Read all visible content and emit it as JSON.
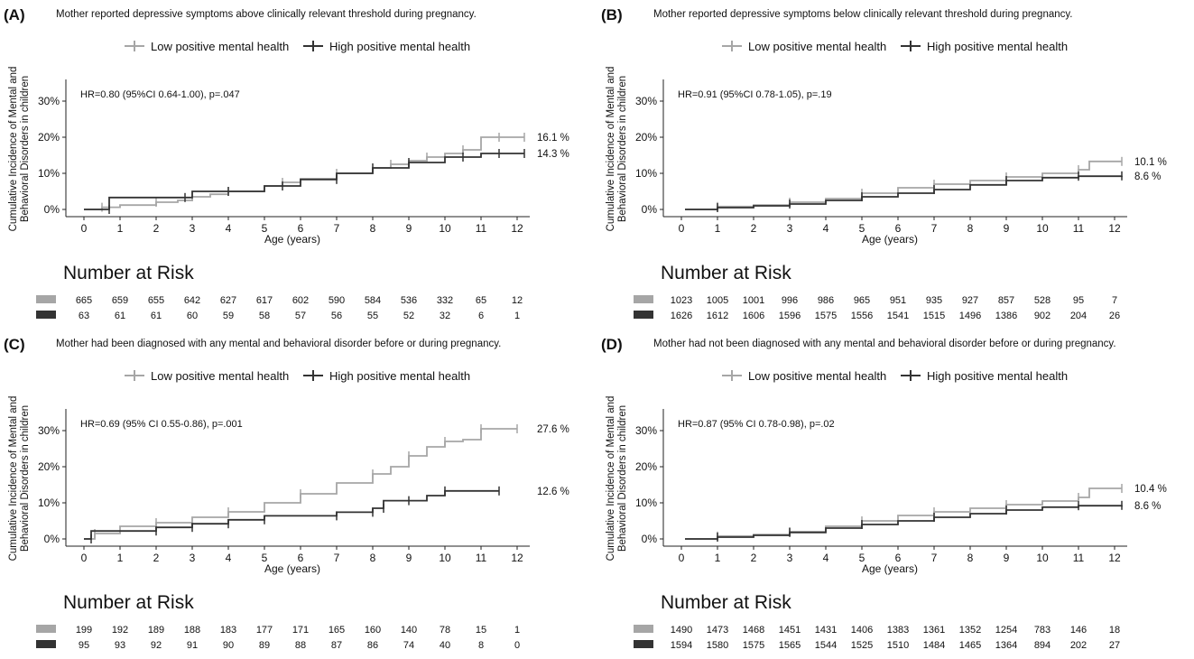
{
  "colors": {
    "low": "#a6a6a6",
    "high": "#333333",
    "axis": "#222222",
    "text": "#111111"
  },
  "common": {
    "ylabel_line1": "Cumulative Incidence of Mental and",
    "ylabel_line2": "Behavioral Disorders in children",
    "xlabel": "Age (years)",
    "risk_title": "Number at Risk",
    "legend_low": "Low positive mental health",
    "legend_high": "High positive mental health"
  },
  "chart_data": [
    {
      "type": "line",
      "panel_label": "(A)",
      "title": "Mother reported depressive symptoms above clinically relevant threshold during pregnancy.",
      "annotation": "HR=0.80 (95%CI 0.64-1.00), p=.047",
      "xlabel": "Age (years)",
      "ylabel": "Cumulative Incidence of Mental and Behavioral Disorders in children",
      "x_ticks": [
        0,
        1,
        2,
        3,
        4,
        5,
        6,
        7,
        8,
        9,
        10,
        11,
        12
      ],
      "y_ticks": [
        "0%",
        "10%",
        "20%",
        "30%"
      ],
      "xlim": [
        0,
        12
      ],
      "ylim": [
        0,
        35
      ],
      "series": [
        {
          "name": "Low positive mental health",
          "end_label": "16.1 %",
          "x": [
            0,
            0.5,
            1,
            2,
            2.6,
            3,
            3.5,
            4,
            5,
            5.5,
            6,
            7,
            8,
            8.5,
            9,
            9.5,
            10,
            10.5,
            11,
            11.5,
            12.2
          ],
          "y": [
            0,
            0.6,
            1.2,
            2,
            2.5,
            3.5,
            4.2,
            5,
            6.5,
            7.5,
            8.5,
            10,
            11.5,
            12.5,
            13.5,
            14.5,
            15.5,
            16.5,
            20,
            20,
            20
          ]
        },
        {
          "name": "High positive mental health",
          "end_label": "14.3 %",
          "x": [
            0,
            0.7,
            0.7,
            2.8,
            3,
            4,
            5,
            5.5,
            6,
            7,
            7,
            8,
            8.5,
            9,
            10,
            10.5,
            11,
            11.5,
            12.2
          ],
          "y": [
            0,
            0,
            3.3,
            3.3,
            5,
            5,
            6.5,
            6.5,
            8.3,
            8.3,
            10,
            11.5,
            11.5,
            13,
            14.5,
            14.5,
            15.5,
            15.5,
            15.5
          ]
        }
      ],
      "risk_low": [
        "665",
        "659",
        "655",
        "642",
        "627",
        "617",
        "602",
        "590",
        "584",
        "536",
        "332",
        "65",
        "12"
      ],
      "risk_high": [
        "63",
        "61",
        "61",
        "60",
        "59",
        "58",
        "57",
        "56",
        "55",
        "52",
        "32",
        "6",
        "1"
      ]
    },
    {
      "type": "line",
      "panel_label": "(B)",
      "title": "Mother reported depressive symptoms below clinically relevant threshold during pregnancy.",
      "annotation": "HR=0.91 (95%CI 0.78-1.05), p=.19",
      "xlabel": "Age (years)",
      "ylabel": "Cumulative Incidence of Mental and Behavioral Disorders in children",
      "x_ticks": [
        0,
        1,
        2,
        3,
        4,
        5,
        6,
        7,
        8,
        9,
        10,
        11,
        12
      ],
      "y_ticks": [
        "0%",
        "10%",
        "20%",
        "30%"
      ],
      "xlim": [
        0,
        12
      ],
      "ylim": [
        0,
        35
      ],
      "series": [
        {
          "name": "Low positive mental health",
          "end_label": "10.1 %",
          "x": [
            0.1,
            1,
            2,
            3,
            4,
            5,
            6,
            7,
            8,
            9,
            10,
            11,
            11.3,
            12.2
          ],
          "y": [
            0,
            0.8,
            1.2,
            2,
            3,
            4.5,
            6,
            7,
            8,
            9,
            10,
            11,
            13.3,
            13.3
          ]
        },
        {
          "name": "High positive mental health",
          "end_label": "8.6 %",
          "x": [
            0.1,
            1,
            2,
            3,
            4,
            5,
            6,
            7,
            8,
            9,
            10,
            11,
            12.2
          ],
          "y": [
            0,
            0.5,
            1,
            1.5,
            2.5,
            3.5,
            4.5,
            5.5,
            6.8,
            8,
            8.8,
            9.2,
            9.3
          ]
        }
      ],
      "risk_low": [
        "1023",
        "1005",
        "1001",
        "996",
        "986",
        "965",
        "951",
        "935",
        "927",
        "857",
        "528",
        "95",
        "7"
      ],
      "risk_high": [
        "1626",
        "1612",
        "1606",
        "1596",
        "1575",
        "1556",
        "1541",
        "1515",
        "1496",
        "1386",
        "902",
        "204",
        "26"
      ]
    },
    {
      "type": "line",
      "panel_label": "(C)",
      "title": "Mother had been diagnosed with any mental and behavioral disorder before or during pregnancy.",
      "annotation": "HR=0.69 (95% CI 0.55-0.86), p=.001",
      "xlabel": "Age (years)",
      "ylabel": "Cumulative Incidence of Mental and Behavioral Disorders in children",
      "x_ticks": [
        0,
        1,
        2,
        3,
        4,
        5,
        6,
        7,
        8,
        9,
        10,
        11,
        12
      ],
      "y_ticks": [
        "0%",
        "10%",
        "20%",
        "30%"
      ],
      "xlim": [
        0,
        12
      ],
      "ylim": [
        0,
        35
      ],
      "series": [
        {
          "name": "Low positive mental health",
          "end_label": "27.6 %",
          "x": [
            0,
            0.3,
            1,
            2,
            3,
            4,
            5,
            6,
            7,
            8,
            8.5,
            9,
            9.5,
            10,
            10.5,
            11,
            12
          ],
          "y": [
            0,
            1.5,
            3.5,
            4.5,
            6,
            7.5,
            10,
            12.5,
            15.5,
            18,
            20,
            23,
            25.5,
            27,
            27.5,
            30.5,
            30.5
          ]
        },
        {
          "name": "High positive mental health",
          "end_label": "12.6 %",
          "x": [
            0,
            0.2,
            0.2,
            2,
            2,
            3,
            3,
            4,
            4,
            5,
            5,
            7,
            7,
            8,
            8,
            8.3,
            8.3,
            9,
            9.5,
            10,
            11,
            11.5
          ],
          "y": [
            0,
            0,
            2.2,
            2.2,
            3.2,
            3.2,
            4.2,
            4.2,
            5.3,
            5.3,
            6.4,
            6.4,
            7.4,
            7.4,
            8.5,
            8.5,
            10.6,
            10.6,
            12,
            13.3,
            13.3,
            13.3
          ]
        }
      ],
      "risk_low": [
        "199",
        "192",
        "189",
        "188",
        "183",
        "177",
        "171",
        "165",
        "160",
        "140",
        "78",
        "15",
        "1"
      ],
      "risk_high": [
        "95",
        "93",
        "92",
        "91",
        "90",
        "89",
        "88",
        "87",
        "86",
        "74",
        "40",
        "8",
        "0"
      ]
    },
    {
      "type": "line",
      "panel_label": "(D)",
      "title": "Mother had not been diagnosed with any mental and behavioral disorder before or during pregnancy.",
      "annotation": "HR=0.87 (95% CI 0.78-0.98), p=.02",
      "xlabel": "Age (years)",
      "ylabel": "Cumulative Incidence of Mental and Behavioral Disorders in children",
      "x_ticks": [
        0,
        1,
        2,
        3,
        4,
        5,
        6,
        7,
        8,
        9,
        10,
        11,
        12
      ],
      "y_ticks": [
        "0%",
        "10%",
        "20%",
        "30%"
      ],
      "xlim": [
        0,
        12
      ],
      "ylim": [
        0,
        35
      ],
      "series": [
        {
          "name": "Low positive mental health",
          "end_label": "10.4 %",
          "x": [
            0.1,
            1,
            2,
            3,
            4,
            5,
            6,
            7,
            8,
            9,
            10,
            11,
            11.3,
            12.2
          ],
          "y": [
            0,
            0.8,
            1.2,
            2,
            3.5,
            5,
            6.5,
            7.5,
            8.5,
            9.5,
            10.5,
            11.5,
            14,
            14
          ]
        },
        {
          "name": "High positive mental health",
          "end_label": "8.6 %",
          "x": [
            0.1,
            1,
            2,
            3,
            4,
            5,
            6,
            7,
            8,
            9,
            10,
            11,
            12.2
          ],
          "y": [
            0,
            0.5,
            1,
            1.8,
            3,
            4,
            5,
            6,
            7,
            8,
            8.8,
            9.2,
            9.3
          ]
        }
      ],
      "risk_low": [
        "1490",
        "1473",
        "1468",
        "1451",
        "1431",
        "1406",
        "1383",
        "1361",
        "1352",
        "1254",
        "783",
        "146",
        "18"
      ],
      "risk_high": [
        "1594",
        "1580",
        "1575",
        "1565",
        "1544",
        "1525",
        "1510",
        "1484",
        "1465",
        "1364",
        "894",
        "202",
        "27"
      ]
    }
  ]
}
